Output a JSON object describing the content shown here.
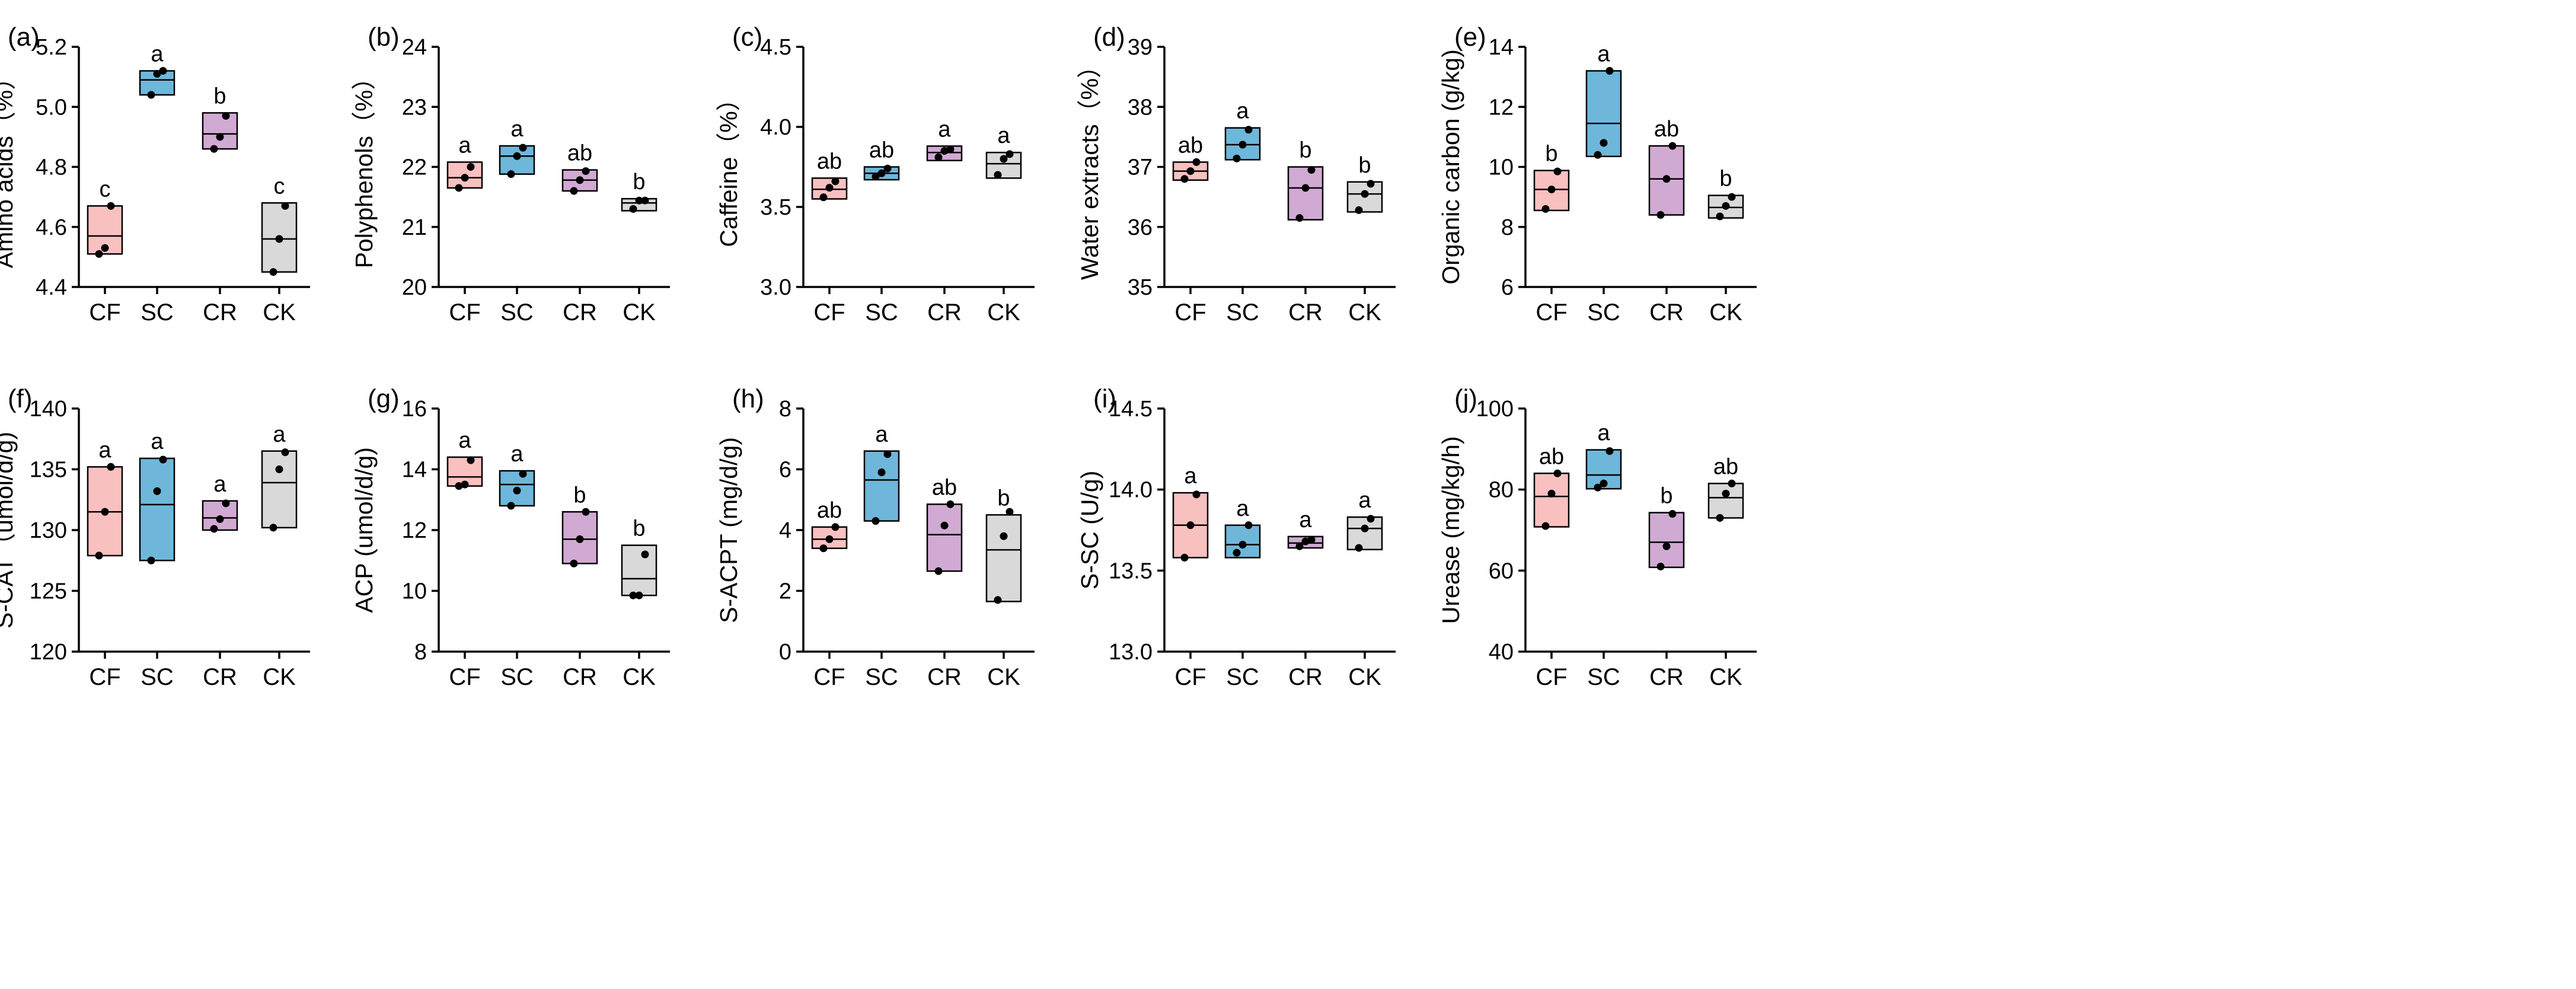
{
  "colors": {
    "CF": "#f9c0c0",
    "SC": "#6eb7db",
    "CR": "#d1aad3",
    "CK": "#d9d9d9"
  },
  "chart_data": [
    {
      "type": "box",
      "tag": "(a)",
      "ylabel": "Amino acids（%）",
      "ylim": [
        4.4,
        5.2
      ],
      "yticks": [
        4.4,
        4.6,
        4.8,
        5.0,
        5.2
      ],
      "ytick_labels": [
        "4.4",
        "4.6",
        "4.8",
        "5.0",
        "5.2"
      ],
      "categories": [
        "CF",
        "SC",
        "CR",
        "CK"
      ],
      "groups": [
        {
          "name": "CF",
          "min": 4.51,
          "median": 4.57,
          "max": 4.67,
          "points": [
            4.51,
            4.53,
            4.67
          ],
          "sig": "c"
        },
        {
          "name": "SC",
          "min": 5.04,
          "median": 5.09,
          "max": 5.12,
          "points": [
            5.04,
            5.11,
            5.12
          ],
          "sig": "a"
        },
        {
          "name": "CR",
          "min": 4.86,
          "median": 4.91,
          "max": 4.98,
          "points": [
            4.86,
            4.9,
            4.97
          ],
          "sig": "b"
        },
        {
          "name": "CK",
          "min": 4.45,
          "median": 4.56,
          "max": 4.68,
          "points": [
            4.45,
            4.56,
            4.67
          ],
          "sig": "c"
        }
      ]
    },
    {
      "type": "box",
      "tag": "(b)",
      "ylabel": "Polyphenols（%）",
      "ylim": [
        20,
        24
      ],
      "yticks": [
        20,
        21,
        22,
        23,
        24
      ],
      "ytick_labels": [
        "20",
        "21",
        "22",
        "23",
        "24"
      ],
      "categories": [
        "CF",
        "SC",
        "CR",
        "CK"
      ],
      "groups": [
        {
          "name": "CF",
          "min": 21.65,
          "median": 21.82,
          "max": 22.08,
          "points": [
            21.65,
            21.82,
            22.0
          ],
          "sig": "a"
        },
        {
          "name": "SC",
          "min": 21.88,
          "median": 22.18,
          "max": 22.35,
          "points": [
            21.88,
            22.18,
            22.32
          ],
          "sig": "a"
        },
        {
          "name": "CR",
          "min": 21.6,
          "median": 21.78,
          "max": 21.95,
          "points": [
            21.6,
            21.78,
            21.93
          ],
          "sig": "ab"
        },
        {
          "name": "CK",
          "min": 21.27,
          "median": 21.4,
          "max": 21.47,
          "points": [
            21.3,
            21.44,
            21.44
          ],
          "sig": "b"
        }
      ]
    },
    {
      "type": "box",
      "tag": "(c)",
      "ylabel": "Caffeine（%）",
      "ylim": [
        3.0,
        4.5
      ],
      "yticks": [
        3.0,
        3.5,
        4.0,
        4.5
      ],
      "ytick_labels": [
        "3.0",
        "3.5",
        "4.0",
        "4.5"
      ],
      "categories": [
        "CF",
        "SC",
        "CR",
        "CK"
      ],
      "groups": [
        {
          "name": "CF",
          "min": 3.55,
          "median": 3.61,
          "max": 3.68,
          "points": [
            3.56,
            3.62,
            3.66
          ],
          "sig": "ab"
        },
        {
          "name": "SC",
          "min": 3.67,
          "median": 3.71,
          "max": 3.75,
          "points": [
            3.69,
            3.71,
            3.74
          ],
          "sig": "ab"
        },
        {
          "name": "CR",
          "min": 3.79,
          "median": 3.84,
          "max": 3.88,
          "points": [
            3.81,
            3.85,
            3.86
          ],
          "sig": "a"
        },
        {
          "name": "CK",
          "min": 3.68,
          "median": 3.77,
          "max": 3.84,
          "points": [
            3.7,
            3.8,
            3.83
          ],
          "sig": "a"
        }
      ]
    },
    {
      "type": "box",
      "tag": "(d)",
      "ylabel": "Water extracts（%）",
      "ylim": [
        35,
        39
      ],
      "yticks": [
        35,
        36,
        37,
        38,
        39
      ],
      "ytick_labels": [
        "35",
        "36",
        "37",
        "38",
        "39"
      ],
      "categories": [
        "CF",
        "SC",
        "CR",
        "CK"
      ],
      "groups": [
        {
          "name": "CF",
          "min": 36.78,
          "median": 36.93,
          "max": 37.08,
          "points": [
            36.8,
            36.93,
            37.08
          ],
          "sig": "ab"
        },
        {
          "name": "SC",
          "min": 37.12,
          "median": 37.37,
          "max": 37.65,
          "points": [
            37.14,
            37.37,
            37.62
          ],
          "sig": "a"
        },
        {
          "name": "CR",
          "min": 36.12,
          "median": 36.65,
          "max": 37.0,
          "points": [
            36.15,
            36.65,
            36.95
          ],
          "sig": "b"
        },
        {
          "name": "CK",
          "min": 36.25,
          "median": 36.55,
          "max": 36.75,
          "points": [
            36.28,
            36.55,
            36.72
          ],
          "sig": "b"
        }
      ]
    },
    {
      "type": "box",
      "tag": "(e)",
      "ylabel": "Organic carbon (g/kg)",
      "ylim": [
        6,
        14
      ],
      "yticks": [
        6,
        8,
        10,
        12,
        14
      ],
      "ytick_labels": [
        "6",
        "8",
        "10",
        "12",
        "14"
      ],
      "categories": [
        "CF",
        "SC",
        "CR",
        "CK"
      ],
      "groups": [
        {
          "name": "CF",
          "min": 8.55,
          "median": 9.25,
          "max": 9.88,
          "points": [
            8.6,
            9.25,
            9.85
          ],
          "sig": "b"
        },
        {
          "name": "SC",
          "min": 10.35,
          "median": 11.45,
          "max": 13.2,
          "points": [
            10.4,
            10.8,
            13.2
          ],
          "sig": "a"
        },
        {
          "name": "CR",
          "min": 8.4,
          "median": 9.6,
          "max": 10.7,
          "points": [
            8.4,
            9.6,
            10.7
          ],
          "sig": "ab"
        },
        {
          "name": "CK",
          "min": 8.3,
          "median": 8.65,
          "max": 9.05,
          "points": [
            8.35,
            8.7,
            9.0
          ],
          "sig": "b"
        }
      ]
    },
    {
      "type": "box",
      "tag": "(f)",
      "ylabel": "S-CAT（umol/d/g)",
      "ylim": [
        120,
        140
      ],
      "yticks": [
        120,
        125,
        130,
        135,
        140
      ],
      "ytick_labels": [
        "120",
        "125",
        "130",
        "135",
        "140"
      ],
      "categories": [
        "CF",
        "SC",
        "CR",
        "CK"
      ],
      "groups": [
        {
          "name": "CF",
          "min": 127.9,
          "median": 131.5,
          "max": 135.2,
          "points": [
            127.9,
            131.5,
            135.2
          ],
          "sig": "a"
        },
        {
          "name": "SC",
          "min": 127.5,
          "median": 132.1,
          "max": 135.9,
          "points": [
            127.5,
            133.2,
            135.8
          ],
          "sig": "a"
        },
        {
          "name": "CR",
          "min": 130.0,
          "median": 131.0,
          "max": 132.4,
          "points": [
            130.1,
            130.9,
            132.2
          ],
          "sig": "a"
        },
        {
          "name": "CK",
          "min": 130.2,
          "median": 133.9,
          "max": 136.5,
          "points": [
            130.2,
            135.0,
            136.4
          ],
          "sig": "a"
        }
      ]
    },
    {
      "type": "box",
      "tag": "(g)",
      "ylabel": "ACP (umol/d/g)",
      "ylim": [
        8,
        16
      ],
      "yticks": [
        8,
        10,
        12,
        14,
        16
      ],
      "ytick_labels": [
        "8",
        "10",
        "12",
        "14",
        "16"
      ],
      "categories": [
        "CF",
        "SC",
        "CR",
        "CK"
      ],
      "groups": [
        {
          "name": "CF",
          "min": 13.45,
          "median": 13.75,
          "max": 14.4,
          "points": [
            13.45,
            13.5,
            14.3
          ],
          "sig": "a"
        },
        {
          "name": "SC",
          "min": 12.8,
          "median": 13.5,
          "max": 13.95,
          "points": [
            12.8,
            13.3,
            13.85
          ],
          "sig": "a"
        },
        {
          "name": "CR",
          "min": 10.9,
          "median": 11.7,
          "max": 12.6,
          "points": [
            10.9,
            11.7,
            12.6
          ],
          "sig": "b"
        },
        {
          "name": "CK",
          "min": 9.85,
          "median": 10.4,
          "max": 11.5,
          "points": [
            9.85,
            9.85,
            11.2
          ],
          "sig": "b"
        }
      ]
    },
    {
      "type": "box",
      "tag": "(h)",
      "ylabel": "S-ACPT (mg/d/g)",
      "ylim": [
        0,
        8
      ],
      "yticks": [
        0,
        2,
        4,
        6,
        8
      ],
      "ytick_labels": [
        "0",
        "2",
        "4",
        "6",
        "8"
      ],
      "categories": [
        "CF",
        "SC",
        "CR",
        "CK"
      ],
      "groups": [
        {
          "name": "CF",
          "min": 3.4,
          "median": 3.7,
          "max": 4.1,
          "points": [
            3.4,
            3.7,
            4.1
          ],
          "sig": "ab"
        },
        {
          "name": "SC",
          "min": 4.3,
          "median": 5.65,
          "max": 6.6,
          "points": [
            4.3,
            5.9,
            6.5
          ],
          "sig": "a"
        },
        {
          "name": "CR",
          "min": 2.65,
          "median": 3.85,
          "max": 4.85,
          "points": [
            2.65,
            4.15,
            4.85
          ],
          "sig": "ab"
        },
        {
          "name": "CK",
          "min": 1.65,
          "median": 3.35,
          "max": 4.5,
          "points": [
            1.7,
            3.8,
            4.6
          ],
          "sig": "b"
        }
      ]
    },
    {
      "type": "box",
      "tag": "(i)",
      "ylabel": "S-SC (U/g)",
      "ylim": [
        13.0,
        14.5
      ],
      "yticks": [
        13.0,
        13.5,
        14.0,
        14.5
      ],
      "ytick_labels": [
        "13.0",
        "13.5",
        "14.0",
        "14.5"
      ],
      "categories": [
        "CF",
        "SC",
        "CR",
        "CK"
      ],
      "groups": [
        {
          "name": "CF",
          "min": 13.58,
          "median": 13.78,
          "max": 13.98,
          "points": [
            13.58,
            13.78,
            13.97
          ],
          "sig": "a"
        },
        {
          "name": "SC",
          "min": 13.58,
          "median": 13.66,
          "max": 13.78,
          "points": [
            13.61,
            13.66,
            13.78
          ],
          "sig": "a"
        },
        {
          "name": "CR",
          "min": 13.64,
          "median": 13.67,
          "max": 13.71,
          "points": [
            13.65,
            13.68,
            13.69
          ],
          "sig": "a"
        },
        {
          "name": "CK",
          "min": 13.63,
          "median": 13.76,
          "max": 13.83,
          "points": [
            13.64,
            13.76,
            13.82
          ],
          "sig": "a"
        }
      ]
    },
    {
      "type": "box",
      "tag": "(j)",
      "ylabel": "Urease (mg/kg/h)",
      "ylim": [
        40,
        100
      ],
      "yticks": [
        40,
        60,
        80,
        100
      ],
      "ytick_labels": [
        "40",
        "60",
        "80",
        "100"
      ],
      "categories": [
        "CF",
        "SC",
        "CR",
        "CK"
      ],
      "groups": [
        {
          "name": "CF",
          "min": 70.8,
          "median": 78.3,
          "max": 84.0,
          "points": [
            71.0,
            79.0,
            84.0
          ],
          "sig": "ab"
        },
        {
          "name": "SC",
          "min": 80.2,
          "median": 83.6,
          "max": 89.8,
          "points": [
            80.5,
            81.5,
            89.5
          ],
          "sig": "a"
        },
        {
          "name": "CR",
          "min": 60.8,
          "median": 67.0,
          "max": 74.3,
          "points": [
            61.0,
            66.0,
            74.0
          ],
          "sig": "b"
        },
        {
          "name": "CK",
          "min": 73.0,
          "median": 78.0,
          "max": 81.5,
          "points": [
            73.0,
            79.0,
            81.5
          ],
          "sig": "ab"
        }
      ]
    }
  ]
}
